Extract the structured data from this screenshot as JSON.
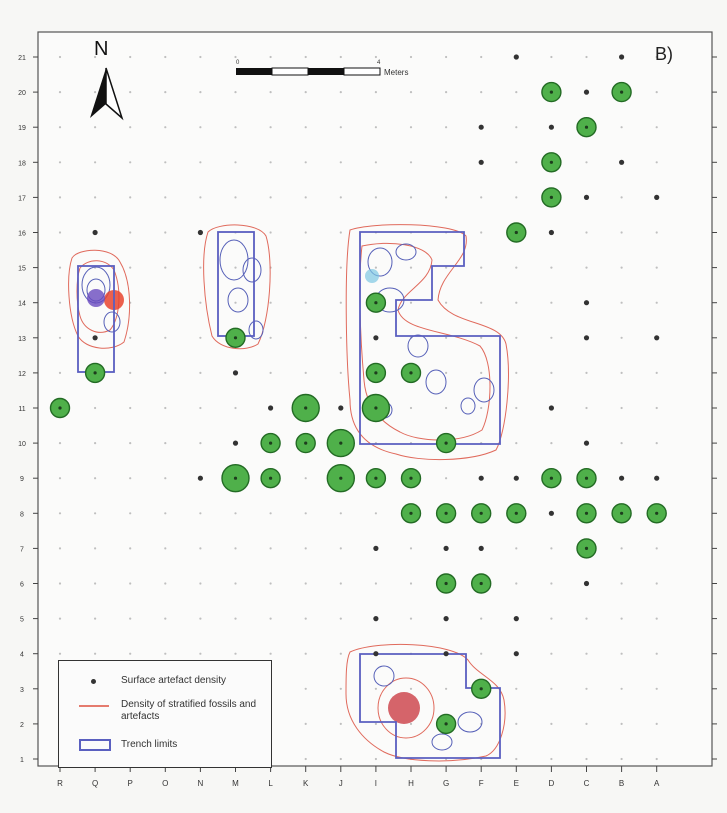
{
  "panel_label": "B)",
  "north_label": "N",
  "scale": {
    "start": "0",
    "end": "4",
    "unit": "Meters"
  },
  "legend": {
    "surface": "Surface artefact density",
    "stratified": "Density of stratified fossils and artefacts",
    "trench": "Trench limits"
  },
  "x_labels": [
    "R",
    "Q",
    "P",
    "O",
    "N",
    "M",
    "L",
    "K",
    "J",
    "I",
    "H",
    "G",
    "F",
    "E",
    "D",
    "C",
    "B",
    "A"
  ],
  "y_labels": [
    "21",
    "20",
    "19",
    "18",
    "17",
    "16",
    "15",
    "14",
    "13",
    "12",
    "11",
    "10",
    "9",
    "8",
    "7",
    "6",
    "5",
    "4",
    "3",
    "2",
    "1"
  ],
  "colors": {
    "dot": "#333333",
    "circle_fill": "#4fb04a",
    "circle_stroke": "#236b24",
    "contour_red": "#e06a5c",
    "contour_blue": "#5660b8",
    "trench": "#5a5fc0",
    "grid_dot": "#bfbfbf"
  },
  "surface_density": [
    {
      "col": "E",
      "row": "21",
      "size": 0
    },
    {
      "col": "B",
      "row": "21",
      "size": 0
    },
    {
      "col": "D",
      "row": "20",
      "size": 2
    },
    {
      "col": "C",
      "row": "20",
      "size": 0
    },
    {
      "col": "B",
      "row": "20",
      "size": 2
    },
    {
      "col": "F",
      "row": "19",
      "size": 0
    },
    {
      "col": "D",
      "row": "19",
      "size": 0
    },
    {
      "col": "C",
      "row": "19",
      "size": 2
    },
    {
      "col": "F",
      "row": "18",
      "size": 0
    },
    {
      "col": "D",
      "row": "18",
      "size": 2
    },
    {
      "col": "B",
      "row": "18",
      "size": 0
    },
    {
      "col": "D",
      "row": "17",
      "size": 2
    },
    {
      "col": "C",
      "row": "17",
      "size": 0
    },
    {
      "col": "A",
      "row": "17",
      "size": 0
    },
    {
      "col": "E",
      "row": "16",
      "size": 2
    },
    {
      "col": "D",
      "row": "16",
      "size": 0
    },
    {
      "col": "Q",
      "row": "16",
      "size": 0
    },
    {
      "col": "N",
      "row": "16",
      "size": 0
    },
    {
      "col": "I",
      "row": "14",
      "size": 2
    },
    {
      "col": "C",
      "row": "14",
      "size": 0
    },
    {
      "col": "Q",
      "row": "13",
      "size": 0
    },
    {
      "col": "M",
      "row": "13",
      "size": 2
    },
    {
      "col": "I",
      "row": "13",
      "size": 0
    },
    {
      "col": "C",
      "row": "13",
      "size": 0
    },
    {
      "col": "A",
      "row": "13",
      "size": 0
    },
    {
      "col": "Q",
      "row": "12",
      "size": 2
    },
    {
      "col": "M",
      "row": "12",
      "size": 0
    },
    {
      "col": "I",
      "row": "12",
      "size": 2
    },
    {
      "col": "H",
      "row": "12",
      "size": 2
    },
    {
      "col": "R",
      "row": "11",
      "size": 2
    },
    {
      "col": "L",
      "row": "11",
      "size": 0
    },
    {
      "col": "K",
      "row": "11",
      "size": 3
    },
    {
      "col": "J",
      "row": "11",
      "size": 0
    },
    {
      "col": "I",
      "row": "11",
      "size": 3
    },
    {
      "col": "D",
      "row": "11",
      "size": 0
    },
    {
      "col": "M",
      "row": "10",
      "size": 0
    },
    {
      "col": "L",
      "row": "10",
      "size": 2
    },
    {
      "col": "K",
      "row": "10",
      "size": 2
    },
    {
      "col": "J",
      "row": "10",
      "size": 3
    },
    {
      "col": "G",
      "row": "10",
      "size": 2
    },
    {
      "col": "C",
      "row": "10",
      "size": 0
    },
    {
      "col": "N",
      "row": "9",
      "size": 0
    },
    {
      "col": "M",
      "row": "9",
      "size": 3
    },
    {
      "col": "L",
      "row": "9",
      "size": 2
    },
    {
      "col": "J",
      "row": "9",
      "size": 3
    },
    {
      "col": "I",
      "row": "9",
      "size": 2
    },
    {
      "col": "H",
      "row": "9",
      "size": 2
    },
    {
      "col": "F",
      "row": "9",
      "size": 0
    },
    {
      "col": "E",
      "row": "9",
      "size": 0
    },
    {
      "col": "D",
      "row": "9",
      "size": 2
    },
    {
      "col": "C",
      "row": "9",
      "size": 2
    },
    {
      "col": "B",
      "row": "9",
      "size": 0
    },
    {
      "col": "A",
      "row": "9",
      "size": 0
    },
    {
      "col": "H",
      "row": "8",
      "size": 2
    },
    {
      "col": "G",
      "row": "8",
      "size": 2
    },
    {
      "col": "F",
      "row": "8",
      "size": 2
    },
    {
      "col": "E",
      "row": "8",
      "size": 2
    },
    {
      "col": "D",
      "row": "8",
      "size": 0
    },
    {
      "col": "C",
      "row": "8",
      "size": 2
    },
    {
      "col": "B",
      "row": "8",
      "size": 2
    },
    {
      "col": "A",
      "row": "8",
      "size": 2
    },
    {
      "col": "I",
      "row": "7",
      "size": 0
    },
    {
      "col": "G",
      "row": "7",
      "size": 0
    },
    {
      "col": "F",
      "row": "7",
      "size": 0
    },
    {
      "col": "C",
      "row": "7",
      "size": 2
    },
    {
      "col": "G",
      "row": "6",
      "size": 2
    },
    {
      "col": "F",
      "row": "6",
      "size": 2
    },
    {
      "col": "C",
      "row": "6",
      "size": 0
    },
    {
      "col": "I",
      "row": "5",
      "size": 0
    },
    {
      "col": "G",
      "row": "5",
      "size": 0
    },
    {
      "col": "E",
      "row": "5",
      "size": 0
    },
    {
      "col": "I",
      "row": "4",
      "size": 0
    },
    {
      "col": "G",
      "row": "4",
      "size": 0
    },
    {
      "col": "E",
      "row": "4",
      "size": 0
    },
    {
      "col": "F",
      "row": "3",
      "size": 2
    },
    {
      "col": "G",
      "row": "2",
      "size": 2
    }
  ]
}
